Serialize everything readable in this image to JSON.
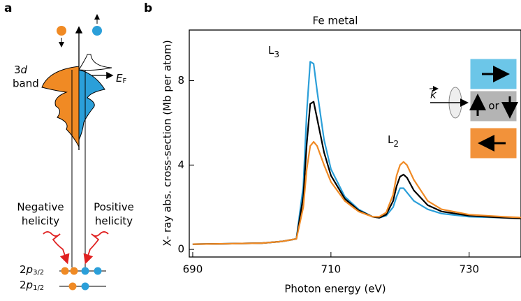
{
  "chart_data": {
    "type": "line",
    "panel_label": "b",
    "title": "Fe metal",
    "x_label": "Photon energy (eV)",
    "y_label": "X- ray abs. cross-section (Mb per atom)",
    "x": [
      690,
      695,
      700,
      703,
      705,
      706,
      706.5,
      707,
      707.5,
      708,
      709,
      710,
      712,
      714,
      716,
      717,
      718,
      719,
      719.5,
      720,
      720.5,
      721,
      722,
      724,
      726,
      730,
      735,
      738
    ],
    "series": [
      {
        "color": "#2b9fd9",
        "values": [
          0.25,
          0.27,
          0.3,
          0.38,
          0.5,
          3.0,
          6.5,
          8.9,
          8.8,
          7.5,
          5.2,
          3.8,
          2.5,
          1.9,
          1.55,
          1.5,
          1.6,
          2.0,
          2.5,
          2.9,
          2.9,
          2.7,
          2.3,
          1.9,
          1.7,
          1.55,
          1.5,
          1.45
        ]
      },
      {
        "color": "#000000",
        "values": [
          0.25,
          0.27,
          0.3,
          0.38,
          0.5,
          2.5,
          5.0,
          6.9,
          7.0,
          6.2,
          4.6,
          3.5,
          2.4,
          1.85,
          1.55,
          1.5,
          1.65,
          2.3,
          3.0,
          3.45,
          3.55,
          3.4,
          2.8,
          2.1,
          1.8,
          1.6,
          1.5,
          1.45
        ]
      },
      {
        "color": "#f08a24",
        "values": [
          0.25,
          0.27,
          0.3,
          0.38,
          0.5,
          2.0,
          3.8,
          4.9,
          5.1,
          4.9,
          4.0,
          3.2,
          2.3,
          1.8,
          1.55,
          1.55,
          1.75,
          2.6,
          3.5,
          4.0,
          4.15,
          4.0,
          3.3,
          2.3,
          1.9,
          1.65,
          1.55,
          1.5
        ]
      }
    ],
    "xlim": [
      689.5,
      737.5
    ],
    "ylim": [
      -0.36,
      10.4
    ],
    "xticks": [
      690,
      710,
      730
    ],
    "yticks": [
      0,
      4,
      8
    ],
    "annotations": [
      {
        "text": "L",
        "subscript": "3"
      },
      {
        "text": "L",
        "subscript": "2"
      }
    ],
    "legend_text": "or",
    "wave_vector": "k",
    "legend_colors": [
      "#6cc6e8",
      "#b4b4b4",
      "#f2923a"
    ]
  },
  "diagram": {
    "panel_label": "a",
    "band": {
      "number": "3",
      "orbital": "d",
      "word": "band"
    },
    "fermi": {
      "main": "E",
      "subscript": "F"
    },
    "negative": [
      "Negative",
      "helicity"
    ],
    "positive": [
      "Positive",
      "helicity"
    ],
    "levels": [
      {
        "main": "2",
        "orbital": "p",
        "subscript": "3/2"
      },
      {
        "main": "2",
        "orbital": "p",
        "subscript": "1/2"
      }
    ]
  }
}
